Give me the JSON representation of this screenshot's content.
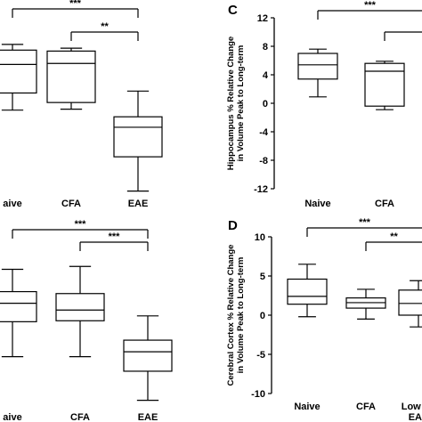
{
  "chart_data": [
    {
      "panel": "",
      "type": "box",
      "categories": [
        "Naive",
        "CFA",
        "EAE"
      ],
      "category_labels": [
        "aive",
        "CFA",
        "EAE"
      ],
      "ylabel": "",
      "yticks": [],
      "ylim": [
        -8,
        12
      ],
      "boxes": [
        {
          "min": 1.0,
          "q1": 2.8,
          "median": 5.8,
          "q3": 7.3,
          "max": 7.9
        },
        {
          "min": 1.1,
          "q1": 1.8,
          "median": 5.9,
          "q3": 7.2,
          "max": 7.5
        },
        {
          "min": -7.5,
          "q1": -3.9,
          "median": -0.8,
          "q3": 0.3,
          "max": 3.0
        }
      ],
      "comparisons": [
        {
          "from": 0,
          "to": 2,
          "label": "***"
        },
        {
          "from": 1,
          "to": 2,
          "label": "**"
        }
      ]
    },
    {
      "panel": "C",
      "type": "box",
      "categories": [
        "Naive",
        "CFA"
      ],
      "category_labels": [
        "Naive",
        "CFA"
      ],
      "ylabel": "Hippocampus % Relative Change in Volume Peak to Long-term",
      "yticks": [
        "-12",
        "-8",
        "-4",
        "0",
        "4",
        "8",
        "12"
      ],
      "ylim": [
        -12,
        12
      ],
      "boxes": [
        {
          "min": 0.9,
          "q1": 3.4,
          "median": 5.4,
          "q3": 7.0,
          "max": 7.6
        },
        {
          "min": -0.9,
          "q1": -0.4,
          "median": 4.5,
          "q3": 5.6,
          "max": 5.9
        }
      ],
      "comparisons": [
        {
          "from": 0,
          "to": 2,
          "label": "***"
        },
        {
          "from": 1,
          "to": 2,
          "label": ""
        }
      ]
    },
    {
      "panel": "",
      "type": "box",
      "categories": [
        "Naive",
        "CFA",
        "EAE"
      ],
      "category_labels": [
        "aive",
        "CFA",
        "EAE"
      ],
      "ylabel": "",
      "yticks": [],
      "ylim": [
        -10,
        10
      ],
      "boxes": [
        {
          "min": -4.0,
          "q1": -0.4,
          "median": 1.5,
          "q3": 2.7,
          "max": 5.0
        },
        {
          "min": -4.0,
          "q1": -0.3,
          "median": 0.8,
          "q3": 2.5,
          "max": 5.3
        },
        {
          "min": -8.5,
          "q1": -5.5,
          "median": -3.5,
          "q3": -2.3,
          "max": 0.2
        }
      ],
      "comparisons": [
        {
          "from": 0,
          "to": 2,
          "label": "***"
        },
        {
          "from": 1,
          "to": 2,
          "label": "***"
        }
      ]
    },
    {
      "panel": "D",
      "type": "box",
      "categories": [
        "Naive",
        "CFA",
        "Low Sc"
      ],
      "category_labels": [
        "Naive",
        "CFA",
        "Low Sc"
      ],
      "extra_label": "EAE",
      "ylabel": "Cerebral Cortex % Relative Change in Volume Peak to Long-term",
      "yticks": [
        "-10",
        "-5",
        "0",
        "5",
        "10"
      ],
      "ylim": [
        -10,
        10
      ],
      "boxes": [
        {
          "min": -0.2,
          "q1": 1.4,
          "median": 2.4,
          "q3": 4.6,
          "max": 6.5
        },
        {
          "min": -0.5,
          "q1": 0.9,
          "median": 1.6,
          "q3": 2.2,
          "max": 3.3
        },
        {
          "min": -1.5,
          "q1": 0.0,
          "median": 1.5,
          "q3": 3.2,
          "max": 4.4
        }
      ],
      "comparisons": [
        {
          "from": 0,
          "to": 3,
          "label": "***"
        },
        {
          "from": 1,
          "to": 3,
          "label": "**"
        }
      ]
    }
  ]
}
